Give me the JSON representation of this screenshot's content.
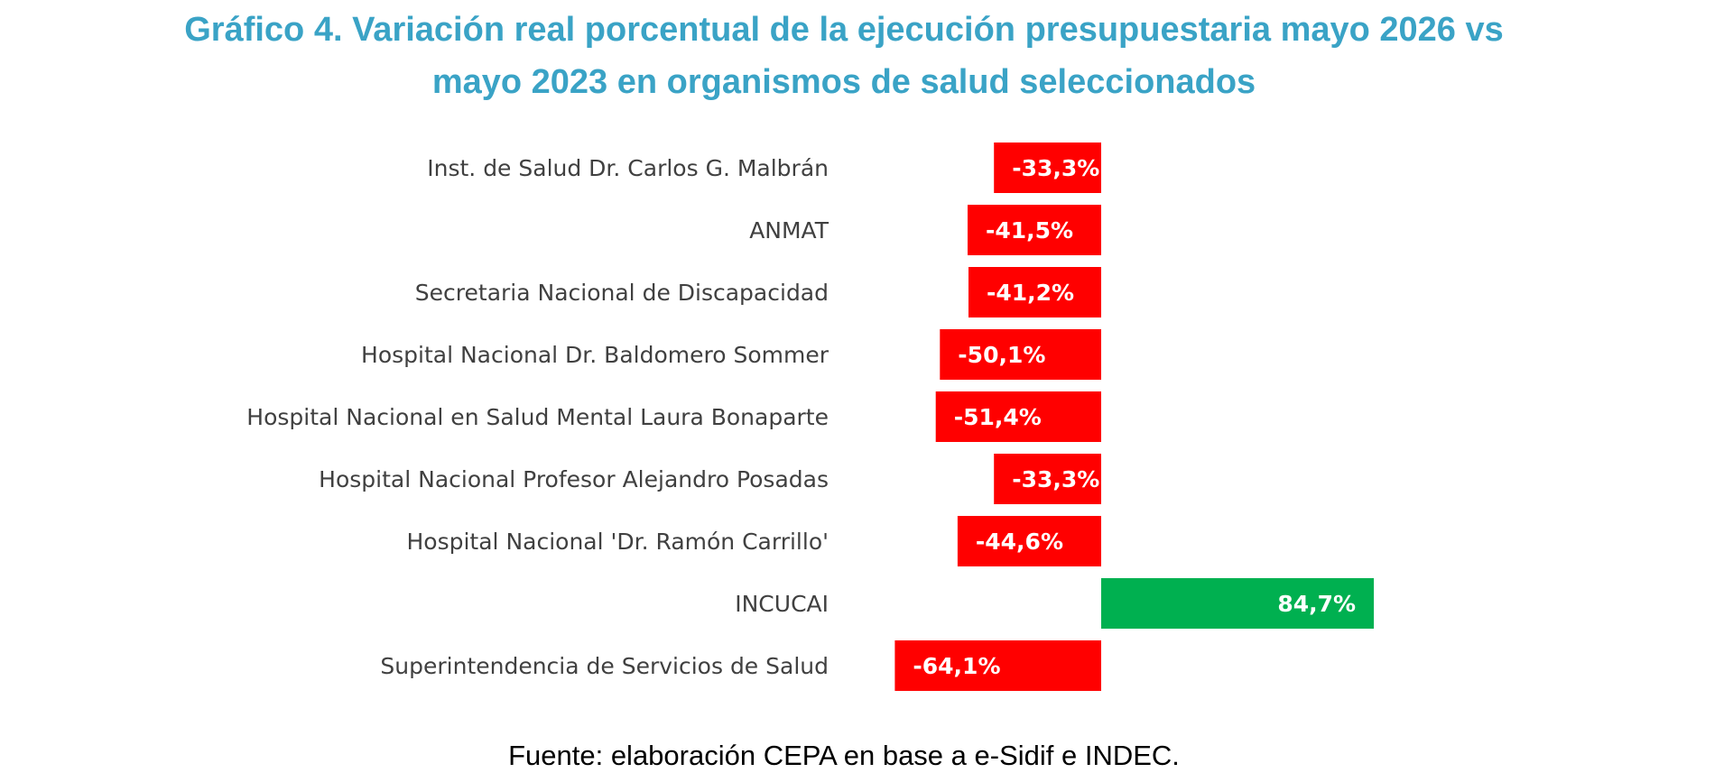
{
  "chart_data": {
    "type": "bar",
    "orientation": "horizontal",
    "title": "Gráfico 4. Variación real porcentual de la ejecución presupuestaria mayo 2026 vs mayo 2023 en organismos de salud seleccionados",
    "title_lines": [
      "Gráfico 4. Variación real porcentual de la ejecución presupuestaria mayo 2026 vs",
      "mayo 2023 en organismos de salud seleccionados"
    ],
    "categories": [
      "Inst. de Salud Dr. Carlos G. Malbrán",
      "ANMAT",
      "Secretaria Nacional de Discapacidad",
      "Hospital Nacional Dr. Baldomero Sommer",
      "Hospital Nacional en Salud Mental Laura Bonaparte",
      "Hospital Nacional Profesor Alejandro Posadas",
      "Hospital Nacional 'Dr. Ramón Carrillo'",
      "INCUCAI",
      "Superintendencia de Servicios de Salud"
    ],
    "values": [
      -33.3,
      -41.5,
      -41.2,
      -50.1,
      -51.4,
      -33.3,
      -44.6,
      84.7,
      -64.1
    ],
    "value_labels": [
      "-33,3%",
      "-41,5%",
      "-41,2%",
      "-50,1%",
      "-51,4%",
      "-33,3%",
      "-44,6%",
      "84,7%",
      "-64,1%"
    ],
    "colors": {
      "negative": "#ff0000",
      "positive": "#00b050",
      "title": "#3aa3c6",
      "category_text": "#404040"
    },
    "xlim": [
      -64.1,
      84.7
    ],
    "grid": false,
    "legend": "none",
    "xlabel": "",
    "ylabel": ""
  },
  "source": "Fuente: elaboración CEPA en base a e-Sidif e INDEC."
}
